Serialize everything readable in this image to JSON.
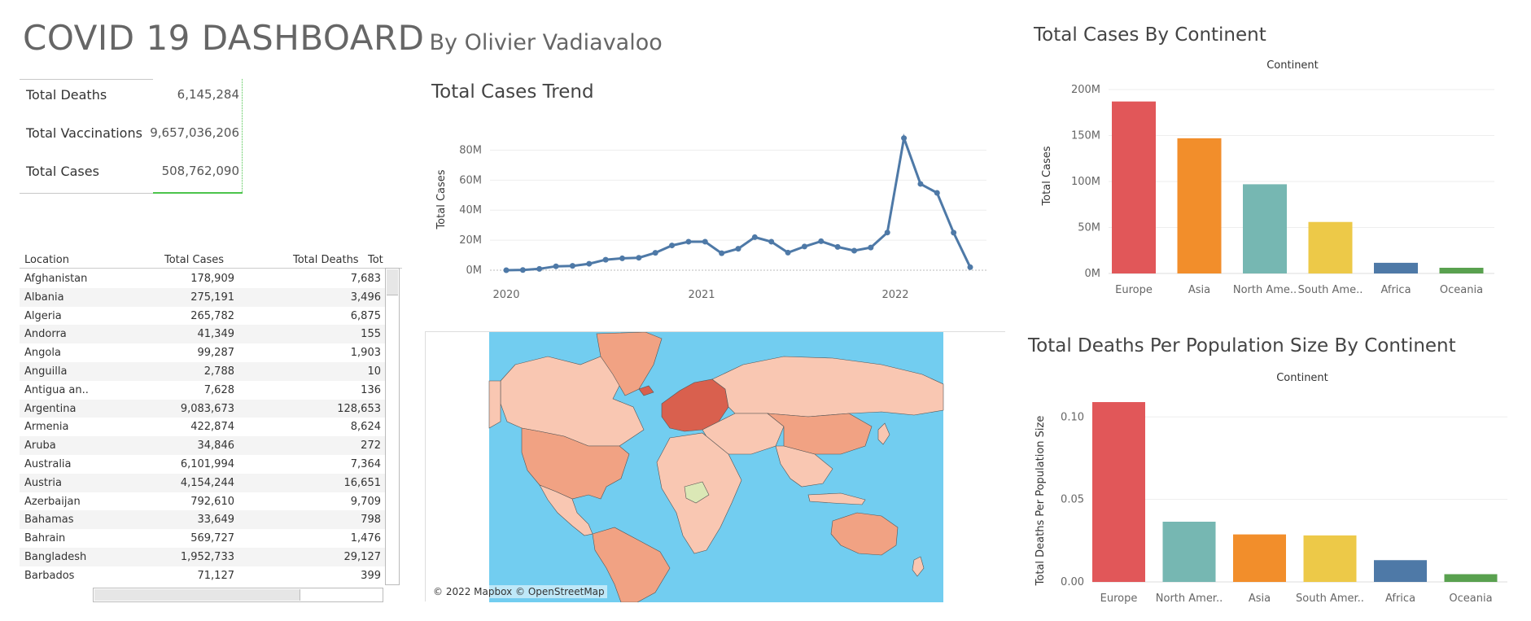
{
  "header": {
    "title": "COVID 19 DASHBOARD",
    "subtitle": "By Olivier Vadiavaloo"
  },
  "kpis": [
    {
      "label": "Total Deaths",
      "value": "6,145,284"
    },
    {
      "label": "Total Vaccinations",
      "value": "9,657,036,206"
    },
    {
      "label": "Total Cases",
      "value": "508,762,090"
    }
  ],
  "table": {
    "columns": [
      "Location",
      "Total Cases",
      "Total Deaths",
      "Tot"
    ],
    "rows": [
      [
        "Afghanistan",
        "178,909",
        "7,683"
      ],
      [
        "Albania",
        "275,191",
        "3,496"
      ],
      [
        "Algeria",
        "265,782",
        "6,875"
      ],
      [
        "Andorra",
        "41,349",
        "155"
      ],
      [
        "Angola",
        "99,287",
        "1,903"
      ],
      [
        "Anguilla",
        "2,788",
        "10"
      ],
      [
        "Antigua an..",
        "7,628",
        "136"
      ],
      [
        "Argentina",
        "9,083,673",
        "128,653"
      ],
      [
        "Armenia",
        "422,874",
        "8,624"
      ],
      [
        "Aruba",
        "34,846",
        "272"
      ],
      [
        "Australia",
        "6,101,994",
        "7,364"
      ],
      [
        "Austria",
        "4,154,244",
        "16,651"
      ],
      [
        "Azerbaijan",
        "792,610",
        "9,709"
      ],
      [
        "Bahamas",
        "33,649",
        "798"
      ],
      [
        "Bahrain",
        "569,727",
        "1,476"
      ],
      [
        "Bangladesh",
        "1,952,733",
        "29,127"
      ],
      [
        "Barbados",
        "71,127",
        "399"
      ]
    ]
  },
  "map": {
    "attribution": "© 2022 Mapbox © OpenStreetMap",
    "ocean_color": "#72cdf0",
    "land_colors": {
      "low": "#f9c7b2",
      "mid": "#f1a283",
      "high": "#d9604e",
      "na": "#dbe8b6"
    }
  },
  "chart_data": [
    {
      "type": "line",
      "title": "Total Cases Trend",
      "ylabel": "Total Cases",
      "xlabel": "",
      "x_tick_labels": [
        "2020",
        "2021",
        "2022"
      ],
      "y_tick_labels": [
        "0M",
        "20M",
        "40M",
        "60M",
        "80M"
      ],
      "ylim": [
        0,
        90000000
      ],
      "grid": true,
      "color": "#4e79a7",
      "series": [
        {
          "values": [
            10000,
            150000,
            900000,
            2600000,
            2900000,
            4300000,
            7000000,
            7900000,
            8300000,
            11600000,
            16500000,
            19000000,
            19000000,
            11300000,
            14300000,
            22000000,
            19000000,
            11700000,
            15800000,
            19300000,
            15500000,
            13000000,
            15100000,
            25100000,
            88000000,
            57500000,
            51500000,
            25000000,
            2000000
          ]
        }
      ]
    },
    {
      "type": "bar",
      "title": "Total Cases By Continent",
      "header": "Continent",
      "ylabel": "Total Cases",
      "categories": [
        "Europe",
        "Asia",
        "North Ame..",
        "South Ame..",
        "Africa",
        "Oceania"
      ],
      "values": [
        187000000,
        147000000,
        97000000,
        56000000,
        11600000,
        6200000
      ],
      "y_tick_labels": [
        "0M",
        "50M",
        "100M",
        "150M",
        "200M"
      ],
      "ylim": [
        0,
        200000000
      ],
      "colors": [
        "#e15759",
        "#f28e2b",
        "#76b7b2",
        "#edc948",
        "#4e79a7",
        "#59a14f"
      ]
    },
    {
      "type": "bar",
      "title": "Total Deaths Per Population Size By Continent",
      "header": "Continent",
      "ylabel": "Total Deaths Per Population Size",
      "categories": [
        "Europe",
        "North Amer..",
        "Asia",
        "South Amer..",
        "Africa",
        "Oceania"
      ],
      "values": [
        0.109,
        0.0365,
        0.0288,
        0.0282,
        0.0132,
        0.0047
      ],
      "y_tick_labels": [
        "0.00",
        "0.05",
        "0.10"
      ],
      "ylim": [
        0,
        0.11
      ],
      "colors": [
        "#e15759",
        "#76b7b2",
        "#f28e2b",
        "#edc948",
        "#4e79a7",
        "#59a14f"
      ]
    }
  ]
}
